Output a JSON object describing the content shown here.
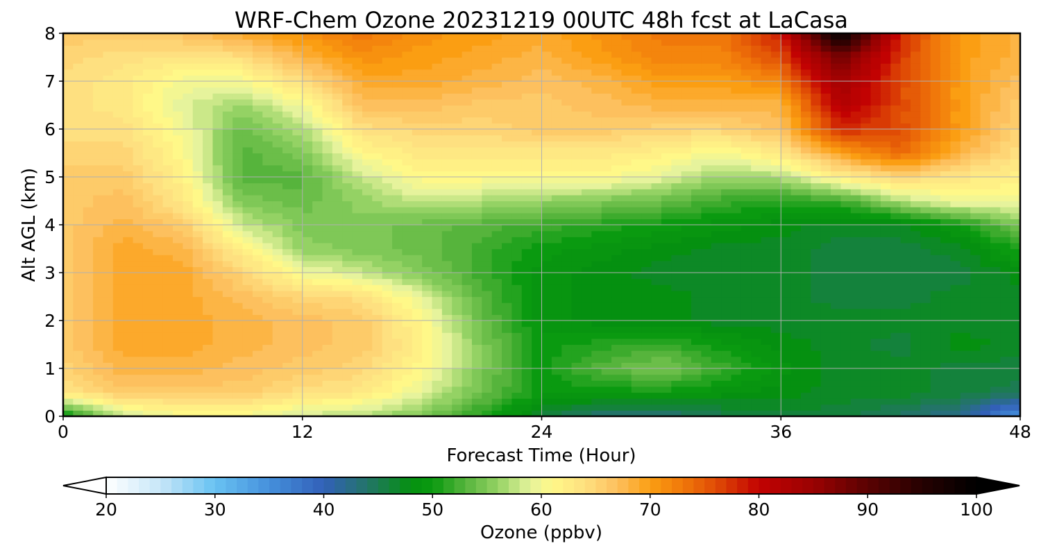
{
  "chart_data": {
    "type": "heatmap",
    "title": "WRF-Chem Ozone  20231219 00UTC 48h fcst at LaCasa",
    "xlabel": "Forecast Time (Hour)",
    "ylabel": "Alt AGL (km)",
    "xlim": [
      0,
      48
    ],
    "ylim": [
      0,
      8
    ],
    "xticks": [
      0,
      12,
      24,
      36,
      48
    ],
    "yticks": [
      0,
      1,
      2,
      3,
      4,
      5,
      6,
      7,
      8
    ],
    "grid": true,
    "x": [
      0,
      3,
      6,
      9,
      12,
      15,
      18,
      21,
      24,
      27,
      30,
      33,
      36,
      39,
      42,
      45,
      48
    ],
    "y": [
      0,
      0.5,
      1,
      1.5,
      2,
      2.5,
      3,
      3.5,
      4,
      4.5,
      5,
      5.5,
      6,
      6.5,
      7,
      7.5,
      8
    ],
    "z": [
      [
        49,
        58,
        60,
        60,
        58,
        57,
        55,
        51,
        46,
        43,
        43,
        45,
        46,
        46,
        44,
        42,
        34
      ],
      [
        63,
        66,
        66,
        66,
        64,
        63,
        59,
        54,
        50,
        50,
        50,
        49,
        48,
        47,
        47,
        46,
        45
      ],
      [
        65,
        68,
        68,
        67,
        66,
        65,
        61,
        55,
        50,
        53,
        55,
        52,
        49,
        47,
        47,
        46,
        46
      ],
      [
        66,
        69,
        69,
        68,
        67,
        66,
        62,
        55,
        50,
        51,
        52,
        50,
        48,
        47,
        46,
        48,
        47
      ],
      [
        66,
        69,
        69,
        68,
        67,
        66,
        61,
        54,
        49,
        48,
        48,
        47,
        47,
        47,
        47,
        47,
        47
      ],
      [
        66,
        69,
        69,
        67,
        65,
        64,
        59,
        53,
        49,
        48,
        48,
        47,
        47,
        46,
        46,
        47,
        47
      ],
      [
        66,
        69,
        69,
        65,
        60,
        58,
        55,
        52,
        49,
        48,
        47,
        47,
        47,
        46,
        46,
        46,
        48
      ],
      [
        66,
        69,
        68,
        62,
        56,
        55,
        54,
        52,
        50,
        49,
        48,
        47,
        47,
        46,
        46,
        47,
        51
      ],
      [
        66,
        68,
        66,
        58,
        55,
        55,
        54,
        53,
        52,
        51,
        50,
        49,
        48,
        47,
        47,
        50,
        55
      ],
      [
        66,
        67,
        63,
        55,
        54,
        56,
        58,
        57,
        56,
        55,
        54,
        52,
        51,
        52,
        57,
        60,
        60
      ],
      [
        66,
        66,
        62,
        53,
        53,
        58,
        61,
        61,
        61,
        61,
        59,
        56,
        57,
        62,
        65,
        63,
        62
      ],
      [
        65,
        65,
        61,
        53,
        55,
        61,
        63,
        63,
        63,
        63,
        62,
        60,
        63,
        70,
        74,
        68,
        64
      ],
      [
        64,
        64,
        60,
        54,
        57,
        64,
        65,
        65,
        66,
        66,
        65,
        65,
        67,
        78,
        76,
        70,
        65
      ],
      [
        64,
        63,
        59,
        56,
        60,
        67,
        67,
        66,
        66,
        67,
        68,
        68,
        68,
        82,
        76,
        70,
        66
      ],
      [
        64,
        63,
        60,
        60,
        64,
        69,
        69,
        68,
        67,
        68,
        70,
        70,
        72,
        84,
        76,
        70,
        67
      ],
      [
        65,
        64,
        63,
        64,
        68,
        71,
        70,
        69,
        68,
        70,
        72,
        72,
        76,
        88,
        77,
        70,
        68
      ],
      [
        66,
        66,
        67,
        69,
        71,
        73,
        71,
        70,
        69,
        71,
        73,
        73,
        79,
        100,
        78,
        70,
        68
      ]
    ],
    "colorbar": {
      "label": "Ozone  (ppbv)",
      "min": 20,
      "max": 100,
      "step": 1,
      "ticks": [
        20,
        30,
        40,
        50,
        60,
        70,
        80,
        90,
        100
      ],
      "extend": "both",
      "stops": [
        {
          "v": 20,
          "c": "#ffffff"
        },
        {
          "v": 25,
          "c": "#c6e6f8"
        },
        {
          "v": 30,
          "c": "#68c2f2"
        },
        {
          "v": 35,
          "c": "#4590dc"
        },
        {
          "v": 40,
          "c": "#3260b8"
        },
        {
          "v": 44,
          "c": "#237468"
        },
        {
          "v": 48,
          "c": "#059010"
        },
        {
          "v": 50,
          "c": "#0a9a10"
        },
        {
          "v": 53,
          "c": "#56b43c"
        },
        {
          "v": 56,
          "c": "#94d264"
        },
        {
          "v": 59,
          "c": "#e6f39c"
        },
        {
          "v": 61,
          "c": "#fff888"
        },
        {
          "v": 64,
          "c": "#fee080"
        },
        {
          "v": 67,
          "c": "#fdc05e"
        },
        {
          "v": 70,
          "c": "#fb9e12"
        },
        {
          "v": 73,
          "c": "#f0780a"
        },
        {
          "v": 76,
          "c": "#e04c05"
        },
        {
          "v": 80,
          "c": "#c20202"
        },
        {
          "v": 85,
          "c": "#9a0202"
        },
        {
          "v": 90,
          "c": "#5a0202"
        },
        {
          "v": 95,
          "c": "#260101"
        },
        {
          "v": 100,
          "c": "#000000"
        }
      ]
    }
  }
}
